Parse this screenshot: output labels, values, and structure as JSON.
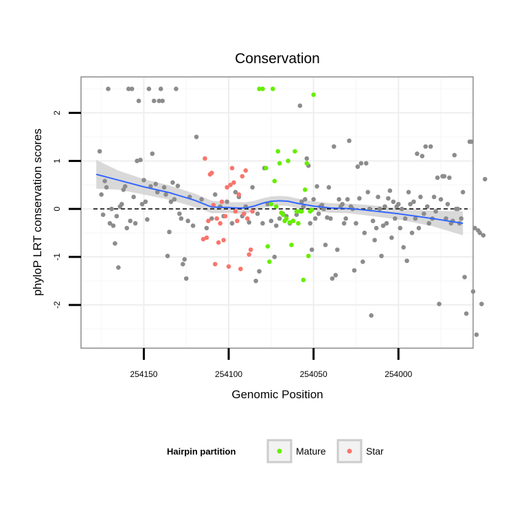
{
  "chart_data": {
    "type": "scatter",
    "title": "Conservation",
    "xlabel": "Genomic Position",
    "ylabel": "phyloP LRT conservation scores",
    "x_reversed": true,
    "xlim": [
      254187,
      253956
    ],
    "ylim": [
      -2.9,
      2.75
    ],
    "x_ticks": [
      254150,
      254100,
      254050,
      254000
    ],
    "y_ticks": [
      -2,
      -1,
      0,
      1,
      2
    ],
    "reference_line": {
      "y": 0,
      "style": "dashed"
    },
    "legend": {
      "title": "Hairpin partition",
      "position": "bottom",
      "entries": [
        {
          "label": "Mature",
          "color": "#66ee00"
        },
        {
          "label": "Star",
          "color": "#f8766d"
        }
      ]
    },
    "colors": {
      "other": "#8c8c8c",
      "Mature": "#66ee00",
      "Star": "#f8766d",
      "smooth": "#3366ff",
      "ribbon": "#cccccc"
    },
    "series": [
      {
        "name": "Other",
        "points": [
          [
            254176,
            1.2
          ],
          [
            254175,
            0.3
          ],
          [
            254174,
            -0.12
          ],
          [
            254173,
            0.58
          ],
          [
            254172,
            0.45
          ],
          [
            254171,
            2.5
          ],
          [
            254170,
            -0.3
          ],
          [
            254169,
            0.0
          ],
          [
            254168,
            -0.35
          ],
          [
            254167,
            -0.72
          ],
          [
            254166,
            -0.15
          ],
          [
            254165,
            -1.22
          ],
          [
            254164,
            0.05
          ],
          [
            254163,
            0.1
          ],
          [
            254162,
            0.4
          ],
          [
            254161,
            0.47
          ],
          [
            254160,
            -0.4
          ],
          [
            254159,
            2.5
          ],
          [
            254158,
            -0.25
          ],
          [
            254157,
            2.5
          ],
          [
            254156,
            0.25
          ],
          [
            254155,
            -0.3
          ],
          [
            254154,
            1.0
          ],
          [
            254153,
            2.25
          ],
          [
            254152,
            1.02
          ],
          [
            254151,
            0.1
          ],
          [
            254150,
            0.6
          ],
          [
            254149,
            0.15
          ],
          [
            254148,
            -0.22
          ],
          [
            254147,
            2.5
          ],
          [
            254146,
            0.47
          ],
          [
            254145,
            1.15
          ],
          [
            254144,
            2.25
          ],
          [
            254143,
            0.52
          ],
          [
            254142,
            0.35
          ],
          [
            254141,
            2.25
          ],
          [
            254140,
            2.5
          ],
          [
            254139,
            2.25
          ],
          [
            254138,
            0.45
          ],
          [
            254137,
            0.3
          ],
          [
            254136,
            -0.98
          ],
          [
            254135,
            -0.48
          ],
          [
            254134,
            0.15
          ],
          [
            254133,
            0.55
          ],
          [
            254132,
            0.2
          ],
          [
            254131,
            2.5
          ],
          [
            254130,
            0.48
          ],
          [
            254129,
            -0.1
          ],
          [
            254128,
            -0.2
          ],
          [
            254127,
            -1.15
          ],
          [
            254126,
            -1.05
          ],
          [
            254125,
            -1.45
          ],
          [
            254124,
            -0.25
          ],
          [
            254123,
            0.25
          ],
          [
            254121,
            -0.35
          ],
          [
            254119,
            1.5
          ],
          [
            254116,
            0.2
          ],
          [
            254113,
            -0.4
          ],
          [
            254110,
            -0.2
          ],
          [
            254108,
            0.3
          ],
          [
            254105,
            0.05
          ],
          [
            254103,
            -0.15
          ],
          [
            254101,
            0.15
          ],
          [
            254098,
            -0.3
          ],
          [
            254096,
            0.35
          ],
          [
            254094,
            0.25
          ],
          [
            254092,
            -0.15
          ],
          [
            254090,
            0.05
          ],
          [
            254088,
            -0.28
          ],
          [
            254086,
            0.45
          ],
          [
            254084,
            -1.5
          ],
          [
            254083,
            -0.1
          ],
          [
            254082,
            -1.3
          ],
          [
            254080,
            -0.3
          ],
          [
            254079,
            0.85
          ],
          [
            254077,
            0.1
          ],
          [
            254075,
            -0.25
          ],
          [
            254073,
            -1.0
          ],
          [
            254072,
            -0.35
          ],
          [
            254070,
            -0.2
          ],
          [
            254068,
            -0.1
          ],
          [
            254066,
            -0.15
          ],
          [
            254064,
            -0.3
          ],
          [
            254062,
            -0.25
          ],
          [
            254060,
            -0.12
          ],
          [
            254058,
            2.15
          ],
          [
            254057,
            0.15
          ],
          [
            254056,
            0.05
          ],
          [
            254055,
            0.2
          ],
          [
            254054,
            1.05
          ],
          [
            254053,
            0.9
          ],
          [
            254052,
            -0.3
          ],
          [
            254051,
            -0.85
          ],
          [
            254050,
            0.2
          ],
          [
            254049,
            -0.2
          ],
          [
            254048,
            0.47
          ],
          [
            254047,
            -0.1
          ],
          [
            254046,
            0.05
          ],
          [
            254045,
            0.08
          ],
          [
            254044,
            0.0
          ],
          [
            254043,
            -0.75
          ],
          [
            254042,
            -0.18
          ],
          [
            254041,
            0.45
          ],
          [
            254040,
            -0.2
          ],
          [
            254039,
            -1.45
          ],
          [
            254038,
            1.3
          ],
          [
            254037,
            -1.38
          ],
          [
            254036,
            -0.85
          ],
          [
            254035,
            0.2
          ],
          [
            254034,
            0.05
          ],
          [
            254033,
            0.1
          ],
          [
            254032,
            -0.3
          ],
          [
            254031,
            -0.2
          ],
          [
            254030,
            0.2
          ],
          [
            254029,
            1.42
          ],
          [
            254028,
            0.05
          ],
          [
            254027,
            0.0
          ],
          [
            254026,
            -1.28
          ],
          [
            254025,
            -0.3
          ],
          [
            254024,
            0.88
          ],
          [
            254023,
            0.22
          ],
          [
            254022,
            0.95
          ],
          [
            254021,
            -1.1
          ],
          [
            254020,
            -0.5
          ],
          [
            254019,
            0.95
          ],
          [
            254018,
            0.35
          ],
          [
            254017,
            0.0
          ],
          [
            254016,
            -2.22
          ],
          [
            254015,
            -0.25
          ],
          [
            254014,
            -0.65
          ],
          [
            254013,
            -0.4
          ],
          [
            254012,
            0.25
          ],
          [
            254011,
            0.0
          ],
          [
            254010,
            -0.98
          ],
          [
            254009,
            -0.35
          ],
          [
            254008,
            0.05
          ],
          [
            254007,
            -0.3
          ],
          [
            254006,
            0.22
          ],
          [
            254005,
            0.38
          ],
          [
            254004,
            -0.6
          ],
          [
            254003,
            0.15
          ],
          [
            254002,
            -0.2
          ],
          [
            254001,
            0.05
          ],
          [
            254000,
            0.1
          ],
          [
            253999,
            -0.4
          ],
          [
            253998,
            0.0
          ],
          [
            253997,
            -0.8
          ],
          [
            253996,
            -0.2
          ],
          [
            253995,
            -1.08
          ],
          [
            253994,
            0.35
          ],
          [
            253993,
            0.1
          ],
          [
            253992,
            -0.5
          ],
          [
            253991,
            0.15
          ],
          [
            253990,
            -0.2
          ],
          [
            253989,
            1.15
          ],
          [
            253988,
            -0.4
          ],
          [
            253987,
            0.25
          ],
          [
            253986,
            1.1
          ],
          [
            253985,
            -0.1
          ],
          [
            253984,
            1.3
          ],
          [
            253983,
            0.05
          ],
          [
            253982,
            -0.3
          ],
          [
            253981,
            1.3
          ],
          [
            253980,
            -0.2
          ],
          [
            253979,
            0.25
          ],
          [
            253978,
            -0.05
          ],
          [
            253977,
            0.65
          ],
          [
            253976,
            -1.98
          ],
          [
            253975,
            0.2
          ],
          [
            253974,
            0.68
          ],
          [
            253973,
            0.68
          ],
          [
            253972,
            -0.2
          ],
          [
            253971,
            0.1
          ],
          [
            253970,
            0.65
          ],
          [
            253969,
            -0.3
          ],
          [
            253968,
            -0.25
          ],
          [
            253967,
            1.12
          ],
          [
            253966,
            0.0
          ],
          [
            253965,
            0.0
          ],
          [
            253964,
            -0.3
          ],
          [
            253963,
            -0.2
          ],
          [
            253962,
            0.35
          ],
          [
            253961,
            -1.42
          ],
          [
            253960,
            -2.18
          ],
          [
            253958,
            1.4
          ],
          [
            253957,
            1.4
          ],
          [
            253956,
            -1.72
          ],
          [
            253955,
            -0.4
          ],
          [
            253954,
            -2.62
          ],
          [
            253953,
            -0.45
          ],
          [
            253952,
            -0.5
          ],
          [
            253951,
            -1.98
          ],
          [
            253950,
            -0.55
          ],
          [
            253949,
            0.62
          ]
        ]
      },
      {
        "name": "Mature",
        "points": [
          [
            254082,
            2.5
          ],
          [
            254080,
            2.5
          ],
          [
            254078,
            0.85
          ],
          [
            254077,
            -0.78
          ],
          [
            254076,
            -1.1
          ],
          [
            254075,
            0.1
          ],
          [
            254074,
            2.5
          ],
          [
            254073,
            0.58
          ],
          [
            254072,
            0.05
          ],
          [
            254071,
            1.2
          ],
          [
            254070,
            0.95
          ],
          [
            254069,
            -0.08
          ],
          [
            254068,
            -0.12
          ],
          [
            254067,
            -0.25
          ],
          [
            254066,
            -0.2
          ],
          [
            254065,
            1.0
          ],
          [
            254064,
            -0.28
          ],
          [
            254063,
            -0.75
          ],
          [
            254062,
            -0.25
          ],
          [
            254061,
            1.2
          ],
          [
            254060,
            -0.05
          ],
          [
            254059,
            -0.3
          ],
          [
            254058,
            -0.05
          ],
          [
            254057,
            -0.05
          ],
          [
            254056,
            -1.48
          ],
          [
            254055,
            0.4
          ],
          [
            254054,
            0.95
          ],
          [
            254053,
            -0.98
          ],
          [
            254052,
            -0.05
          ],
          [
            254051,
            -0.02
          ],
          [
            254050,
            2.38
          ]
        ]
      },
      {
        "name": "Star",
        "points": [
          [
            254115,
            -0.63
          ],
          [
            254114,
            1.05
          ],
          [
            254113,
            -0.6
          ],
          [
            254112,
            -0.25
          ],
          [
            254111,
            0.72
          ],
          [
            254110,
            0.75
          ],
          [
            254109,
            0.08
          ],
          [
            254108,
            -1.15
          ],
          [
            254107,
            -0.2
          ],
          [
            254106,
            -0.7
          ],
          [
            254105,
            -0.3
          ],
          [
            254104,
            0.15
          ],
          [
            254103,
            -0.65
          ],
          [
            254102,
            -0.15
          ],
          [
            254101,
            0.45
          ],
          [
            254100,
            -1.2
          ],
          [
            254099,
            0.5
          ],
          [
            254098,
            0.85
          ],
          [
            254097,
            0.55
          ],
          [
            254096,
            -0.05
          ],
          [
            254095,
            -0.25
          ],
          [
            254094,
            0.3
          ],
          [
            254093,
            -1.25
          ],
          [
            254092,
            0.68
          ],
          [
            254091,
            -0.1
          ],
          [
            254090,
            0.8
          ],
          [
            254089,
            -0.2
          ],
          [
            254088,
            -0.95
          ],
          [
            254087,
            -0.85
          ],
          [
            254086,
            -0.05
          ]
        ]
      }
    ],
    "smooth_line": {
      "method": "loess",
      "points": [
        [
          254178,
          0.72
        ],
        [
          254165,
          0.6
        ],
        [
          254150,
          0.46
        ],
        [
          254135,
          0.34
        ],
        [
          254120,
          0.18
        ],
        [
          254110,
          0.04
        ],
        [
          254100,
          0.03
        ],
        [
          254095,
          0.02
        ],
        [
          254090,
          0.02
        ],
        [
          254085,
          0.06
        ],
        [
          254080,
          0.12
        ],
        [
          254075,
          0.16
        ],
        [
          254070,
          0.17
        ],
        [
          254065,
          0.16
        ],
        [
          254060,
          0.12
        ],
        [
          254050,
          0.06
        ],
        [
          254040,
          0.02
        ],
        [
          254030,
          0.01
        ],
        [
          254020,
          -0.02
        ],
        [
          254000,
          -0.1
        ],
        [
          253980,
          -0.2
        ],
        [
          253962,
          -0.3
        ]
      ],
      "ci_half_width": [
        0.3,
        0.2,
        0.16,
        0.15,
        0.14,
        0.13,
        0.11,
        0.12,
        0.12,
        0.11,
        0.1,
        0.1,
        0.1,
        0.1,
        0.1,
        0.1,
        0.1,
        0.1,
        0.11,
        0.12,
        0.16,
        0.25
      ]
    }
  }
}
